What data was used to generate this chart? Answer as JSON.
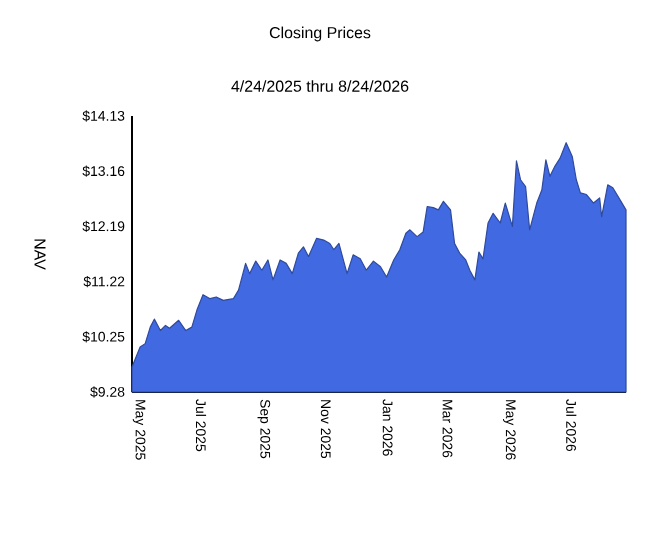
{
  "chart_data": {
    "type": "area",
    "title": "Closing Prices",
    "subtitle": "4/24/2025 thru 8/24/2026",
    "ylabel": "NAV",
    "x": [
      "2025-04-24",
      "2025-05-02",
      "2025-05-07",
      "2025-05-12",
      "2025-05-16",
      "2025-05-22",
      "2025-05-27",
      "2025-05-31",
      "2025-06-09",
      "2025-06-16",
      "2025-06-22",
      "2025-06-27",
      "2025-07-03",
      "2025-07-10",
      "2025-07-16",
      "2025-07-23",
      "2025-08-02",
      "2025-08-07",
      "2025-08-14",
      "2025-08-18",
      "2025-08-24",
      "2025-08-30",
      "2025-09-05",
      "2025-09-10",
      "2025-09-17",
      "2025-09-23",
      "2025-09-29",
      "2025-10-05",
      "2025-10-10",
      "2025-10-15",
      "2025-10-23",
      "2025-10-30",
      "2025-11-05",
      "2025-11-09",
      "2025-11-14",
      "2025-11-22",
      "2025-11-28",
      "2025-12-05",
      "2025-12-11",
      "2025-12-18",
      "2025-12-25",
      "2025-12-31",
      "2026-01-07",
      "2026-01-13",
      "2026-01-19",
      "2026-01-23",
      "2026-01-30",
      "2026-02-05",
      "2026-02-09",
      "2026-02-15",
      "2026-02-20",
      "2026-02-25",
      "2026-03-04",
      "2026-03-08",
      "2026-03-13",
      "2026-03-19",
      "2026-03-23",
      "2026-03-28",
      "2026-04-01",
      "2026-04-05",
      "2026-04-10",
      "2026-04-15",
      "2026-04-22",
      "2026-04-27",
      "2026-05-04",
      "2026-05-08",
      "2026-05-12",
      "2026-05-17",
      "2026-05-21",
      "2026-05-28",
      "2026-06-02",
      "2026-06-06",
      "2026-06-10",
      "2026-06-15",
      "2026-06-20",
      "2026-06-26",
      "2026-07-02",
      "2026-07-06",
      "2026-07-10",
      "2026-07-16",
      "2026-07-23",
      "2026-07-29",
      "2026-07-31",
      "2026-08-06",
      "2026-08-11",
      "2026-08-18",
      "2026-08-24"
    ],
    "series": [
      {
        "color": "#4169e1",
        "values": [
          9.72,
          10.07,
          10.13,
          10.42,
          10.56,
          10.36,
          10.45,
          10.4,
          10.54,
          10.36,
          10.42,
          10.72,
          10.99,
          10.92,
          10.95,
          10.89,
          10.92,
          11.07,
          11.54,
          11.36,
          11.58,
          11.42,
          11.6,
          11.25,
          11.6,
          11.54,
          11.36,
          11.72,
          11.83,
          11.66,
          11.98,
          11.95,
          11.89,
          11.78,
          11.89,
          11.36,
          11.69,
          11.62,
          11.42,
          11.58,
          11.48,
          11.3,
          11.6,
          11.78,
          12.07,
          12.13,
          12.01,
          12.09,
          12.54,
          12.52,
          12.48,
          12.63,
          12.48,
          11.89,
          11.72,
          11.6,
          11.42,
          11.25,
          11.74,
          11.62,
          12.25,
          12.42,
          12.25,
          12.6,
          12.19,
          13.34,
          13.01,
          12.89,
          12.13,
          12.6,
          12.83,
          13.36,
          13.07,
          13.25,
          13.39,
          13.66,
          13.42,
          13.01,
          12.78,
          12.75,
          12.6,
          12.69,
          12.36,
          12.92,
          12.87,
          12.66,
          12.48
        ]
      }
    ],
    "xlim": [
      "2025-04-24",
      "2026-08-24"
    ],
    "xticks": [
      {
        "value": "2025-05-01",
        "label": "May 2025"
      },
      {
        "value": "2025-07-01",
        "label": "Jul 2025"
      },
      {
        "value": "2025-09-01",
        "label": "Sep 2025"
      },
      {
        "value": "2025-11-01",
        "label": "Nov 2025"
      },
      {
        "value": "2026-01-01",
        "label": "Jan 2026"
      },
      {
        "value": "2026-03-01",
        "label": "Mar 2026"
      },
      {
        "value": "2026-05-01",
        "label": "May 2026"
      },
      {
        "value": "2026-07-01",
        "label": "Jul 2026"
      }
    ],
    "ylim": [
      9.28,
      14.13
    ],
    "yticks": [
      {
        "value": 9.28,
        "label": "$9.28"
      },
      {
        "value": 10.25,
        "label": "$10.25"
      },
      {
        "value": 11.22,
        "label": "$11.22"
      },
      {
        "value": 12.19,
        "label": "$12.19"
      },
      {
        "value": 13.16,
        "label": "$13.16"
      },
      {
        "value": 14.13,
        "label": "$14.13"
      }
    ],
    "grid": false
  }
}
